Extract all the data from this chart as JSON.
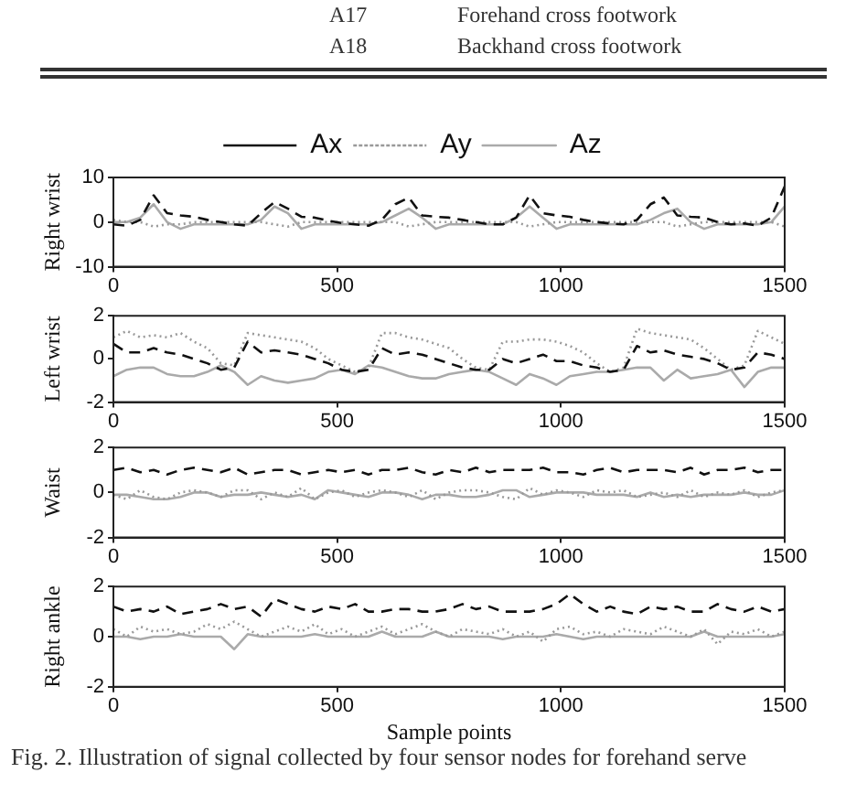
{
  "chart_data": [
    {
      "type": "line",
      "ylabel": "Right wrist",
      "legend": "top",
      "marker": "none",
      "grid": false,
      "annotations": [
        "A17",
        "Forehand cross footwork",
        "A18",
        "Backhand cross footwork"
      ],
      "xlim": [
        0,
        1500
      ],
      "xticks": [
        0,
        500,
        1000,
        1500
      ],
      "ylim": [
        -10,
        10
      ],
      "yticks": [
        -10,
        0,
        10
      ],
      "x": [
        0,
        30,
        60,
        90,
        120,
        150,
        180,
        210,
        240,
        270,
        300,
        330,
        360,
        390,
        420,
        450,
        480,
        510,
        540,
        570,
        600,
        630,
        660,
        690,
        720,
        750,
        780,
        810,
        840,
        870,
        900,
        930,
        960,
        990,
        1020,
        1050,
        1080,
        1110,
        1140,
        1170,
        1200,
        1230,
        1260,
        1290,
        1320,
        1350,
        1380,
        1410,
        1440,
        1470,
        1500
      ],
      "series": [
        {
          "name": "Ax",
          "color": "#111111",
          "line_style": "dashed",
          "values": [
            -0.5,
            -0.8,
            0.5,
            6,
            2,
            1.5,
            1.2,
            0.5,
            0,
            -0.5,
            -0.8,
            2,
            4.5,
            3,
            1.2,
            1,
            0.3,
            -0.2,
            -0.5,
            -0.8,
            0.5,
            4,
            5.5,
            1.5,
            1.2,
            1,
            0.5,
            0,
            -0.5,
            -0.5,
            1,
            6,
            2,
            1.5,
            1.2,
            0.5,
            0,
            -0.3,
            -0.5,
            0.5,
            4,
            5.5,
            1.5,
            1.2,
            1,
            0,
            -0.5,
            -0.3,
            -0.8,
            1,
            8
          ]
        },
        {
          "name": "Ay",
          "color": "#999999",
          "line_style": "dotted",
          "values": [
            0.5,
            0,
            0,
            -1,
            -0.5,
            -0.5,
            0,
            0,
            0,
            0,
            0,
            0,
            -0.5,
            -1,
            0,
            0,
            0,
            0,
            0,
            0,
            0,
            0,
            -1,
            -0.5,
            0,
            0,
            0,
            0,
            0,
            0,
            0,
            -1,
            -0.5,
            0,
            0,
            0,
            0,
            0,
            0,
            0,
            0,
            0,
            -1,
            -0.5,
            0,
            0,
            0,
            0,
            0,
            0,
            -1
          ]
        },
        {
          "name": "Az",
          "color": "#aaaaaa",
          "line_style": "solid",
          "values": [
            0,
            0,
            1,
            4,
            0,
            -1.5,
            -0.5,
            -0.5,
            -0.5,
            -0.5,
            -0.5,
            0.5,
            3.5,
            2,
            -1.5,
            -0.5,
            -0.5,
            -0.5,
            -0.5,
            -0.5,
            0,
            1.5,
            3,
            1,
            -1.5,
            -0.5,
            -0.5,
            -0.5,
            -0.5,
            -0.5,
            1,
            3.5,
            1,
            -1.5,
            -0.5,
            -0.5,
            -0.5,
            -0.5,
            -0.5,
            -0.5,
            0.5,
            2,
            3,
            0,
            -1.5,
            -0.5,
            -0.5,
            -0.5,
            -0.5,
            0,
            3.5
          ]
        }
      ]
    },
    {
      "type": "line",
      "ylabel": "Left wrist",
      "marker": "none",
      "grid": false,
      "xlim": [
        0,
        1500
      ],
      "xticks": [
        0,
        500,
        1000,
        1500
      ],
      "ylim": [
        -2,
        2
      ],
      "yticks": [
        -2,
        0,
        2
      ],
      "x": [
        0,
        30,
        60,
        90,
        120,
        150,
        180,
        210,
        240,
        270,
        300,
        330,
        360,
        390,
        420,
        450,
        480,
        510,
        540,
        570,
        600,
        630,
        660,
        690,
        720,
        750,
        780,
        810,
        840,
        870,
        900,
        930,
        960,
        990,
        1020,
        1050,
        1080,
        1110,
        1140,
        1170,
        1200,
        1230,
        1260,
        1290,
        1320,
        1350,
        1380,
        1410,
        1440,
        1470,
        1500
      ],
      "series": [
        {
          "color": "#111111",
          "line_style": "dashed",
          "values": [
            0.7,
            0.3,
            0.3,
            0.5,
            0.3,
            0.2,
            0,
            -0.2,
            -0.5,
            -0.4,
            0.8,
            0.3,
            0.4,
            0.3,
            0.2,
            0,
            -0.2,
            -0.5,
            -0.6,
            -0.5,
            0.5,
            0.2,
            0.3,
            0.2,
            0,
            -0.2,
            -0.4,
            -0.5,
            -0.5,
            0,
            -0.2,
            0,
            0.2,
            -0.1,
            -0.1,
            -0.3,
            -0.4,
            -0.6,
            -0.5,
            0.6,
            0.3,
            0.4,
            0.2,
            0.1,
            0,
            -0.2,
            -0.5,
            -0.4,
            0.3,
            0.2,
            0
          ]
        },
        {
          "color": "#999999",
          "line_style": "dotted",
          "values": [
            1,
            1.3,
            1,
            1.1,
            1,
            1.2,
            0.8,
            0.5,
            -0.2,
            -0.3,
            1.2,
            1.1,
            1,
            0.9,
            0.8,
            0.5,
            0,
            -0.3,
            -0.6,
            -0.4,
            1.2,
            1.2,
            1,
            0.9,
            0.7,
            0.5,
            0,
            -0.4,
            -0.5,
            0.8,
            0.8,
            0.9,
            0.9,
            0.8,
            0.6,
            0.3,
            -0.2,
            -0.6,
            -0.4,
            1.4,
            1.2,
            1.1,
            1,
            0.9,
            0.5,
            0,
            -0.5,
            -0.3,
            1.3,
            1,
            0.7
          ]
        },
        {
          "color": "#aaaaaa",
          "line_style": "solid",
          "values": [
            -0.8,
            -0.5,
            -0.4,
            -0.4,
            -0.7,
            -0.8,
            -0.8,
            -0.6,
            -0.3,
            -0.6,
            -1.2,
            -0.8,
            -1,
            -1.1,
            -1,
            -0.9,
            -0.6,
            -0.5,
            -0.7,
            -0.3,
            -0.4,
            -0.6,
            -0.8,
            -0.9,
            -0.9,
            -0.7,
            -0.6,
            -0.5,
            -0.6,
            -0.9,
            -1.2,
            -0.7,
            -0.9,
            -1.2,
            -0.8,
            -0.7,
            -0.6,
            -0.6,
            -0.5,
            -0.4,
            -0.4,
            -1,
            -0.5,
            -0.9,
            -0.8,
            -0.7,
            -0.5,
            -1.3,
            -0.6,
            -0.4,
            -0.4
          ]
        }
      ]
    },
    {
      "type": "line",
      "ylabel": "Waist",
      "marker": "none",
      "grid": false,
      "xlim": [
        0,
        1500
      ],
      "xticks": [
        0,
        500,
        1000,
        1500
      ],
      "ylim": [
        -2,
        2
      ],
      "yticks": [
        -2,
        0,
        2
      ],
      "x": [
        0,
        30,
        60,
        90,
        120,
        150,
        180,
        210,
        240,
        270,
        300,
        330,
        360,
        390,
        420,
        450,
        480,
        510,
        540,
        570,
        600,
        630,
        660,
        690,
        720,
        750,
        780,
        810,
        840,
        870,
        900,
        930,
        960,
        990,
        1020,
        1050,
        1080,
        1110,
        1140,
        1170,
        1200,
        1230,
        1260,
        1290,
        1320,
        1350,
        1380,
        1410,
        1440,
        1470,
        1500
      ],
      "series": [
        {
          "color": "#111111",
          "line_style": "dashed",
          "values": [
            1,
            1.1,
            0.9,
            1,
            0.8,
            1,
            1.1,
            1,
            0.9,
            1.1,
            0.8,
            0.9,
            1,
            1,
            0.8,
            0.9,
            1,
            0.9,
            1,
            0.8,
            1,
            1,
            1.1,
            0.9,
            0.8,
            1,
            0.9,
            1.1,
            0.9,
            1,
            1,
            1,
            1.1,
            0.9,
            0.9,
            0.8,
            1,
            1.1,
            0.9,
            1,
            1,
            1,
            0.9,
            1.1,
            0.8,
            1,
            1,
            1.1,
            0.9,
            1,
            1
          ]
        },
        {
          "color": "#999999",
          "line_style": "dotted",
          "values": [
            -0.1,
            -0.3,
            0.1,
            -0.2,
            -0.3,
            0,
            0.1,
            0,
            -0.2,
            0.1,
            0.1,
            -0.3,
            0,
            -0.2,
            0.2,
            -0.3,
            0,
            0.1,
            -0.2,
            0,
            0.1,
            0,
            -0.2,
            0.1,
            -0.3,
            0,
            0.1,
            0.1,
            0,
            -0.2,
            -0.3,
            0.2,
            -0.1,
            0.1,
            0,
            -0.2,
            0.1,
            0,
            0.1,
            -0.2,
            -0.1,
            0,
            -0.2,
            0.1,
            -0.2,
            0,
            -0.1,
            0.1,
            -0.2,
            0,
            0.1
          ]
        },
        {
          "color": "#aaaaaa",
          "line_style": "solid",
          "values": [
            -0.1,
            -0.1,
            -0.2,
            -0.3,
            -0.3,
            -0.2,
            0,
            0,
            -0.2,
            -0.1,
            -0.1,
            0,
            -0.1,
            -0.2,
            -0.1,
            -0.3,
            0.1,
            0,
            -0.1,
            -0.2,
            0,
            0,
            -0.1,
            -0.3,
            -0.1,
            -0.1,
            -0.2,
            -0.2,
            -0.1,
            0.1,
            0.1,
            -0.2,
            -0.1,
            0,
            0,
            0,
            -0.1,
            -0.1,
            -0.1,
            -0.2,
            0,
            -0.2,
            -0.1,
            -0.2,
            -0.1,
            -0.1,
            -0.1,
            0,
            -0.1,
            -0.1,
            0.1
          ]
        }
      ]
    },
    {
      "type": "line",
      "ylabel": "Right ankle",
      "xlabel": "Sample points",
      "marker": "none",
      "grid": false,
      "annotations": [
        "Fig. 2.    Illustration of signal collected by four sensor nodes for forehand serve"
      ],
      "xlim": [
        0,
        1500
      ],
      "xticks": [
        0,
        500,
        1000,
        1500
      ],
      "ylim": [
        -2,
        2
      ],
      "yticks": [
        -2,
        0,
        2
      ],
      "x": [
        0,
        30,
        60,
        90,
        120,
        150,
        180,
        210,
        240,
        270,
        300,
        330,
        360,
        390,
        420,
        450,
        480,
        510,
        540,
        570,
        600,
        630,
        660,
        690,
        720,
        750,
        780,
        810,
        840,
        870,
        900,
        930,
        960,
        990,
        1020,
        1050,
        1080,
        1110,
        1140,
        1170,
        1200,
        1230,
        1260,
        1290,
        1320,
        1350,
        1380,
        1410,
        1440,
        1470,
        1500
      ],
      "series": [
        {
          "color": "#111111",
          "line_style": "dashed",
          "values": [
            1.2,
            1,
            1.1,
            1,
            1.2,
            0.9,
            1,
            1.1,
            1.3,
            1.1,
            1.2,
            0.8,
            1.5,
            1.3,
            1.1,
            1,
            1.2,
            1.1,
            1.3,
            1,
            1,
            1.1,
            1.1,
            1,
            1,
            1.1,
            1.3,
            1.1,
            1.2,
            1,
            1,
            1,
            1.1,
            1.3,
            1.7,
            1.3,
            1,
            1.2,
            1,
            0.9,
            1.2,
            1.1,
            1.2,
            1,
            1,
            1.3,
            1.1,
            1,
            1.2,
            1,
            1.1
          ]
        },
        {
          "color": "#999999",
          "line_style": "dotted",
          "values": [
            0.3,
            0,
            0.4,
            0.2,
            0.3,
            0.1,
            0.2,
            0.5,
            0.3,
            0.6,
            0.3,
            0,
            0.2,
            0.4,
            0.2,
            0.5,
            0.1,
            0.3,
            0,
            0.2,
            0.4,
            0.1,
            0.3,
            0.5,
            0.2,
            0,
            0.3,
            0.2,
            0.1,
            0.3,
            0,
            0.2,
            -0.2,
            0.3,
            0.4,
            0.1,
            0.2,
            0,
            0.3,
            0.2,
            0.1,
            0.4,
            0.2,
            0,
            0.3,
            -0.3,
            0.2,
            0.1,
            0.3,
            0,
            0.2
          ]
        },
        {
          "color": "#aaaaaa",
          "line_style": "solid",
          "values": [
            0,
            0,
            -0.1,
            0,
            0,
            0.1,
            0,
            0,
            0,
            -0.5,
            0.1,
            0,
            0,
            0,
            0,
            0.1,
            0,
            0,
            0,
            0,
            0.2,
            0,
            0,
            0,
            0.2,
            0,
            0,
            0,
            0,
            -0.1,
            0,
            0,
            0,
            0.1,
            0,
            -0.1,
            0,
            0,
            0,
            0,
            0,
            0,
            0,
            0,
            0.2,
            0,
            0,
            0,
            0,
            0,
            0.1
          ]
        }
      ]
    }
  ]
}
